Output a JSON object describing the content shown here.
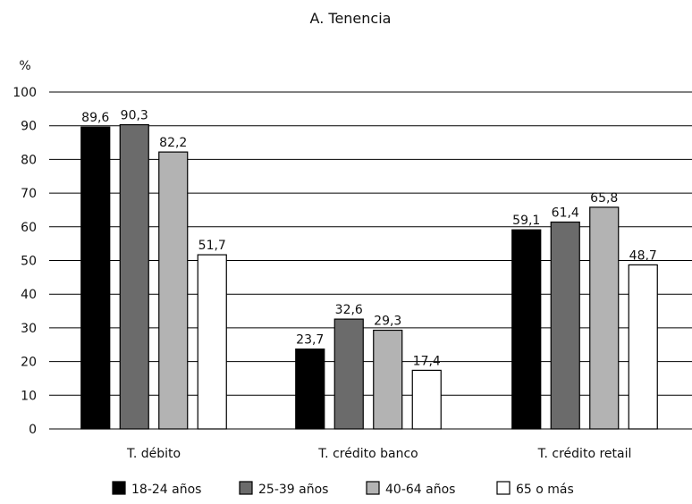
{
  "chart_data": {
    "type": "bar",
    "title": "A. Tenencia",
    "ylabel": "%",
    "xlabel": "",
    "ylim": [
      0,
      100
    ],
    "yticks": [
      0,
      10,
      20,
      30,
      40,
      50,
      60,
      70,
      80,
      90,
      100
    ],
    "grid": true,
    "legend_position": "bottom",
    "categories": [
      "T. débito",
      "T. crédito banco",
      "T. crédito retail"
    ],
    "series": [
      {
        "name": "18-24 años",
        "color": "#000000",
        "values": [
          89.6,
          23.7,
          59.1
        ],
        "labels": [
          "89,6",
          "23,7",
          "59,1"
        ]
      },
      {
        "name": "25-39 años",
        "color": "#6b6b6b",
        "values": [
          90.3,
          32.6,
          61.4
        ],
        "labels": [
          "90,3",
          "32,6",
          "61,4"
        ]
      },
      {
        "name": "40-64 años",
        "color": "#b3b3b3",
        "values": [
          82.2,
          29.3,
          65.8
        ],
        "labels": [
          "82,2",
          "29,3",
          "65,8"
        ]
      },
      {
        "name": "65 o más",
        "color": "#ffffff",
        "values": [
          51.7,
          17.4,
          48.7
        ],
        "labels": [
          "51,7",
          "17,4",
          "48,7"
        ]
      }
    ]
  }
}
